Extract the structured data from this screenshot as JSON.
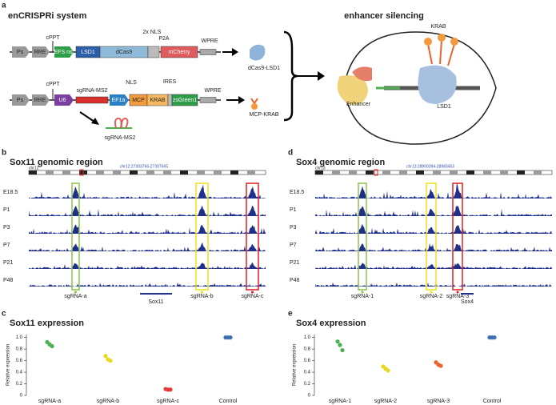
{
  "panel_a": {
    "letter": "a",
    "title": "enCRISPRi system",
    "row1": {
      "ps": "Ps",
      "rre": "RRE",
      "cppt": "cPPT",
      "promoter": "EFS ns",
      "lsd1": "LSD1",
      "dcas9": "dCas9",
      "nls": "2x NLS",
      "p2a": "P2A",
      "mcherry": "mCherry",
      "wpre": "WPRE",
      "product": "dCas9-LSD1"
    },
    "row2": {
      "ps": "Ps",
      "rre": "RRE",
      "cppt": "cPPT",
      "u6": "U6",
      "sgrna": "sgRNA-MS2",
      "nls": "NLS",
      "ef1a": "EF1a",
      "mcp": "MCP",
      "krab": "KRAB",
      "ires": "IRES",
      "zsgreen": "zsGreen1",
      "wpre": "WPRE",
      "product": "MCP-KRAB"
    },
    "sgrna_product": "sgRNA-MS2",
    "right": {
      "title": "enhancer silencing",
      "krab": "KRAB",
      "enhancer": "Enhancer",
      "lsd1": "LSD1"
    }
  },
  "panel_b": {
    "letter": "b",
    "title": "Sox11 genomic region",
    "chrom": "chr12",
    "coords": "chr12:27303766-27307665",
    "samples": [
      "E18.5",
      "P1",
      "P3",
      "P7",
      "P21",
      "P48"
    ],
    "guides": [
      "sgRNA-a",
      "sgRNA-b",
      "sgRNA-c"
    ],
    "gene": "Sox11"
  },
  "panel_d": {
    "letter": "d",
    "title": "Sox4 genomic region",
    "chrom": "chr13",
    "coords": "chr13:28900394-28983453",
    "samples": [
      "E18.5",
      "P1",
      "P3",
      "P7",
      "P21",
      "P48"
    ],
    "guides": [
      "sgRNA-1",
      "sgRNA-2",
      "sgRNA-3"
    ],
    "gene": "Sox4"
  },
  "chart_data": [
    {
      "type": "strip",
      "letter": "c",
      "title": "Sox11 expression",
      "y_label": "Relative expression",
      "categories": [
        "sgRNA-a",
        "sgRNA-b",
        "sgRNA-c",
        "Control"
      ],
      "colors": [
        "#4caf50",
        "#e8d81e",
        "#e53935",
        "#3f6fb5"
      ],
      "values": [
        [
          0.92,
          0.88,
          0.85
        ],
        [
          0.68,
          0.62,
          0.6
        ],
        [
          0.11,
          0.1,
          0.1
        ],
        [
          1,
          1,
          1
        ]
      ],
      "ylim": [
        0,
        1.05
      ],
      "yticks": [
        0,
        0.2,
        0.4,
        0.6,
        0.8,
        {
          "value": 1,
          "label": "1.0"
        }
      ]
    },
    {
      "type": "strip",
      "letter": "e",
      "title": "Sox4 expression",
      "y_label": "Relative expression",
      "categories": [
        "sgRNA-1",
        "sgRNA-2",
        "sgRNA-3",
        "Control"
      ],
      "colors": [
        "#4caf50",
        "#e8d81e",
        "#e8642c",
        "#3f6fb5"
      ],
      "values": [
        [
          0.93,
          0.87,
          0.78
        ],
        [
          0.5,
          0.46,
          0.43
        ],
        [
          0.57,
          0.53,
          0.51
        ],
        [
          1,
          1,
          1
        ]
      ],
      "ylim": [
        0,
        1.05
      ],
      "yticks": [
        0,
        0.2,
        0.4,
        0.6,
        0.8,
        {
          "value": 1,
          "label": "1.0"
        }
      ]
    }
  ]
}
